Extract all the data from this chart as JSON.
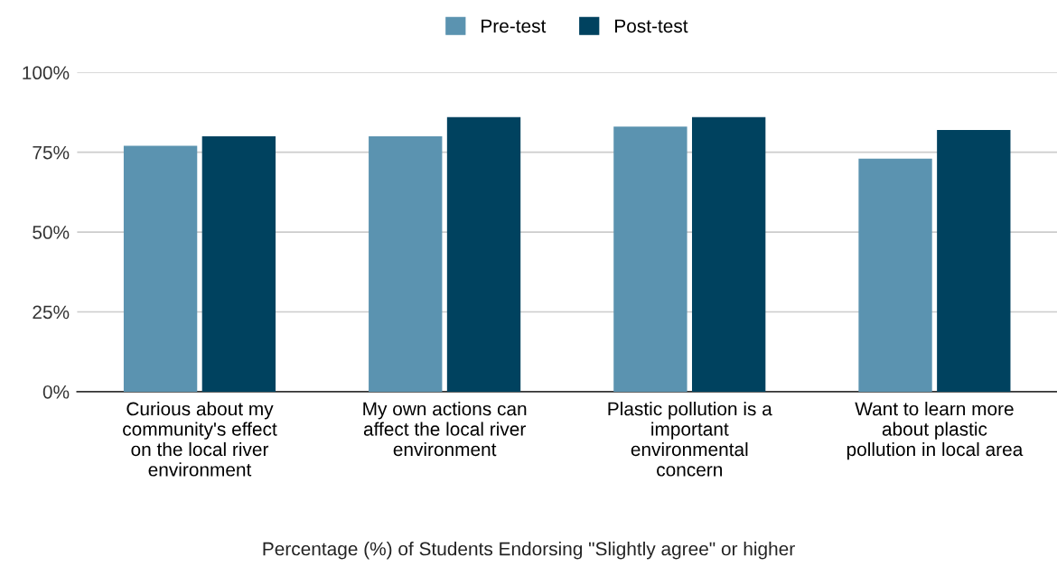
{
  "chart_data": {
    "type": "bar",
    "categories": [
      "Curious about my\ncommunity's effect\non the local river\nenvironment",
      "My own actions can\naffect the local river\nenvironment",
      "Plastic pollution is a\nimportant\nenvironmental\nconcern",
      "Want to learn more\nabout plastic\npollution in local area"
    ],
    "series": [
      {
        "name": "Pre-test",
        "color": "#5b93b0",
        "values": [
          77,
          80,
          83,
          73
        ]
      },
      {
        "name": "Post-test",
        "color": "#00425f",
        "values": [
          80,
          86,
          86,
          82
        ]
      }
    ],
    "xlabel": "Percentage (%) of Students Endorsing \"Slightly agree\" or higher",
    "ylim": [
      0,
      100
    ],
    "yticks": [
      {
        "value": 0,
        "label": "0%"
      },
      {
        "value": 25,
        "label": "25%"
      },
      {
        "value": 50,
        "label": "50%"
      },
      {
        "value": 75,
        "label": "75%"
      },
      {
        "value": 100,
        "label": "100%"
      }
    ],
    "grid": "y",
    "legend": "top"
  }
}
